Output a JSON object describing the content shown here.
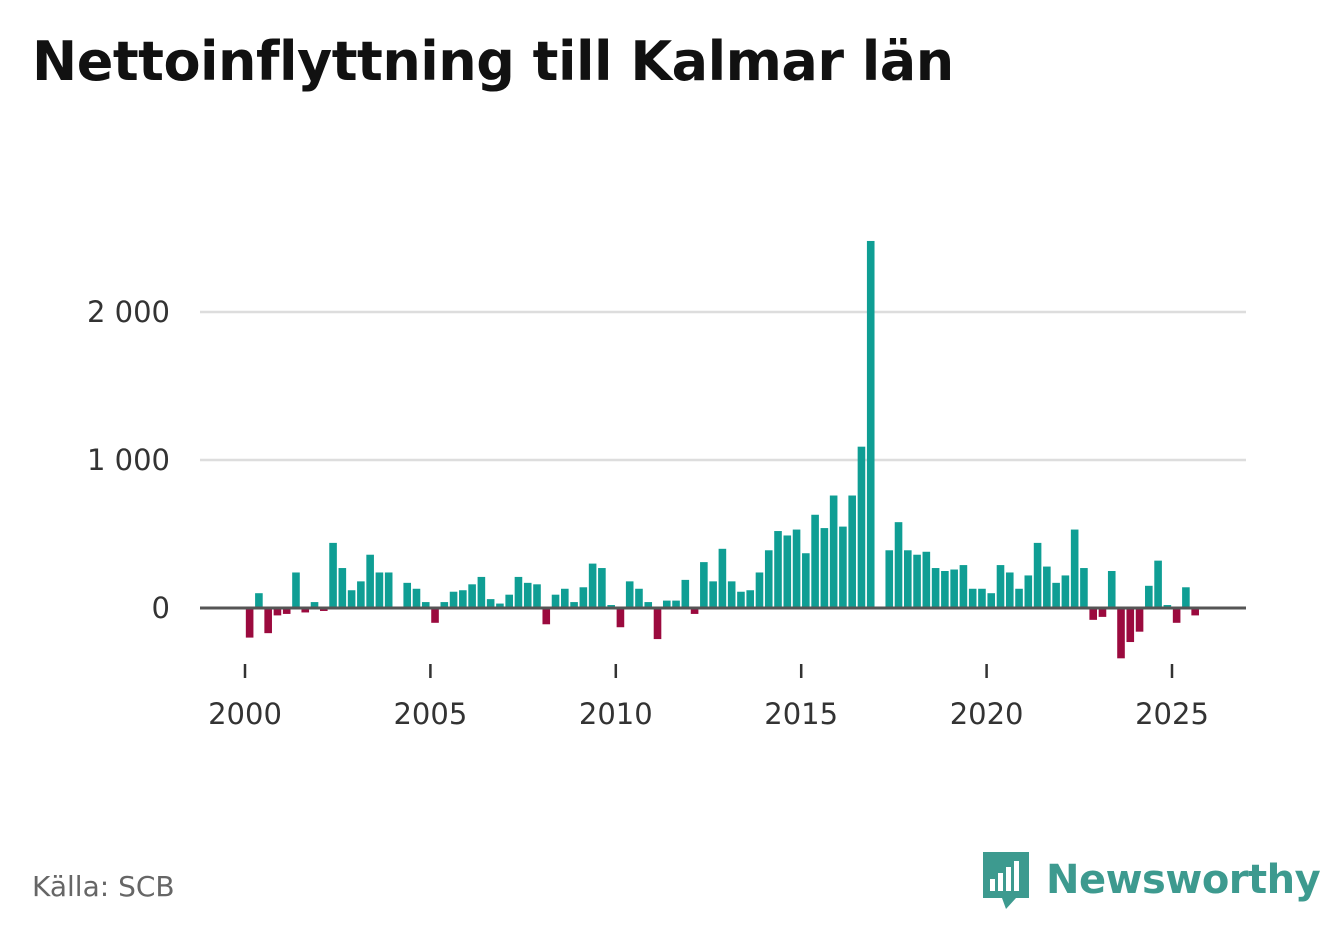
{
  "title": "Nettoinflyttning till Kalmar län",
  "source": "Källa: SCB",
  "brand": "Newsworthy",
  "colors": {
    "positive": "#0f9e94",
    "negative": "#9b0a3e",
    "grid": "#dddddd",
    "axis": "#555555",
    "brand": "#3d9a8f"
  },
  "icons": {
    "brand_logo": "newsworthy-logo-icon"
  },
  "chart_data": {
    "type": "bar",
    "title": "Nettoinflyttning till Kalmar län",
    "xlabel": "",
    "ylabel": "",
    "ylim": [
      -450,
      2550
    ],
    "xlim": [
      1999.55,
      2027.0
    ],
    "yticks": [
      0,
      1000,
      2000
    ],
    "ytick_labels": [
      "0",
      "1 000",
      "2 000"
    ],
    "xticks": [
      2000,
      2005,
      2010,
      2015,
      2020,
      2025
    ],
    "xtick_labels": [
      "2000",
      "2005",
      "2010",
      "2015",
      "2020",
      "2025"
    ],
    "grid": true,
    "period": "quarterly",
    "x": [
      2000.0,
      2000.25,
      2000.5,
      2000.75,
      2001.0,
      2001.25,
      2001.5,
      2001.75,
      2002.0,
      2002.25,
      2002.5,
      2002.75,
      2003.0,
      2003.25,
      2003.5,
      2003.75,
      2004.0,
      2004.25,
      2004.5,
      2004.75,
      2005.0,
      2005.25,
      2005.5,
      2005.75,
      2006.0,
      2006.25,
      2006.5,
      2006.75,
      2007.0,
      2007.25,
      2007.5,
      2007.75,
      2008.0,
      2008.25,
      2008.5,
      2008.75,
      2009.0,
      2009.25,
      2009.5,
      2009.75,
      2010.0,
      2010.25,
      2010.5,
      2010.75,
      2011.0,
      2011.25,
      2011.5,
      2011.75,
      2012.0,
      2012.25,
      2012.5,
      2012.75,
      2013.0,
      2013.25,
      2013.5,
      2013.75,
      2014.0,
      2014.25,
      2014.5,
      2014.75,
      2015.0,
      2015.25,
      2015.5,
      2015.75,
      2016.0,
      2016.25,
      2016.5,
      2016.75,
      2017.0,
      2017.25,
      2017.5,
      2017.75,
      2018.0,
      2018.25,
      2018.5,
      2018.75,
      2019.0,
      2019.25,
      2019.5,
      2019.75,
      2020.0,
      2020.25,
      2020.5,
      2020.75,
      2021.0,
      2021.25,
      2021.5,
      2021.75,
      2022.0,
      2022.25,
      2022.5,
      2022.75,
      2023.0,
      2023.25,
      2023.5,
      2023.75,
      2024.0,
      2024.25,
      2024.5,
      2024.75,
      2025.0,
      2025.25,
      2025.5,
      2025.75
    ],
    "series": [
      {
        "name": "Nettoinflyttning",
        "values": [
          -200,
          100,
          -170,
          -50,
          -40,
          240,
          -30,
          40,
          -20,
          440,
          270,
          120,
          180,
          360,
          240,
          240,
          0,
          170,
          130,
          40,
          -100,
          40,
          110,
          120,
          160,
          210,
          60,
          30,
          90,
          210,
          170,
          160,
          -110,
          90,
          130,
          40,
          140,
          300,
          270,
          20,
          -130,
          180,
          130,
          40,
          -210,
          50,
          50,
          190,
          -40,
          310,
          180,
          400,
          180,
          110,
          120,
          240,
          390,
          520,
          490,
          530,
          370,
          630,
          540,
          760,
          550,
          760,
          1090,
          2480,
          0,
          390,
          580,
          390,
          360,
          380,
          270,
          250,
          260,
          290,
          130,
          130,
          100,
          290,
          240,
          130,
          220,
          440,
          280,
          170,
          220,
          530,
          270,
          -80,
          -60,
          250,
          -340,
          -230,
          -160,
          150,
          320,
          20,
          -100,
          140,
          -50,
          0
        ]
      }
    ]
  }
}
